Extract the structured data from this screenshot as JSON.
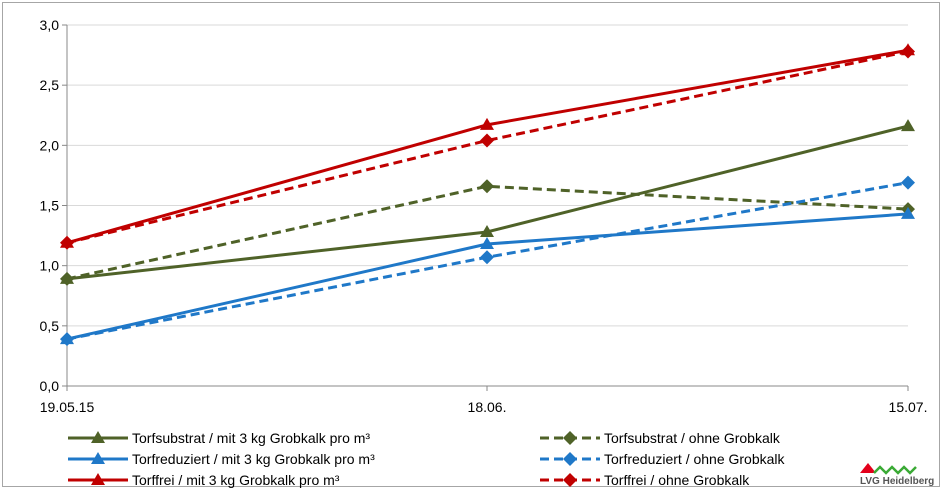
{
  "chart_data": {
    "type": "line",
    "categories": [
      "19.05.15",
      "18.06.",
      "15.07."
    ],
    "ylim": [
      0,
      3
    ],
    "yticks": [
      "0,0",
      "0,5",
      "1,0",
      "1,5",
      "2,0",
      "2,5",
      "3,0"
    ],
    "grid": true,
    "legend_position": "bottom",
    "series": [
      {
        "name": "Torfsubstrat / mit 3 kg Grobkalk pro m³",
        "values": [
          0.89,
          1.28,
          2.16
        ],
        "color": "#4f6228",
        "dashed": false,
        "marker": "triangle"
      },
      {
        "name": "Torfsubstrat / ohne Grobkalk",
        "values": [
          0.89,
          1.66,
          1.47
        ],
        "color": "#4f6228",
        "dashed": true,
        "marker": "diamond"
      },
      {
        "name": "Torfreduziert / mit 3 kg Grobkalk pro m³",
        "values": [
          0.39,
          1.18,
          1.43
        ],
        "color": "#1f78c8",
        "dashed": false,
        "marker": "triangle"
      },
      {
        "name": "Torfreduziert / ohne Grobkalk",
        "values": [
          0.39,
          1.07,
          1.69
        ],
        "color": "#1f78c8",
        "dashed": true,
        "marker": "diamond"
      },
      {
        "name": "Torffrei / mit 3 kg Grobkalk pro m³",
        "values": [
          1.19,
          2.17,
          2.79
        ],
        "color": "#c00000",
        "dashed": false,
        "marker": "triangle"
      },
      {
        "name": "Torffrei / ohne Grobkalk",
        "values": [
          1.19,
          2.04,
          2.78
        ],
        "color": "#c00000",
        "dashed": true,
        "marker": "diamond"
      }
    ]
  },
  "logo": {
    "text": "LVG Heidelberg",
    "color_red": "#e3001b",
    "color_green": "#3aaa35"
  }
}
